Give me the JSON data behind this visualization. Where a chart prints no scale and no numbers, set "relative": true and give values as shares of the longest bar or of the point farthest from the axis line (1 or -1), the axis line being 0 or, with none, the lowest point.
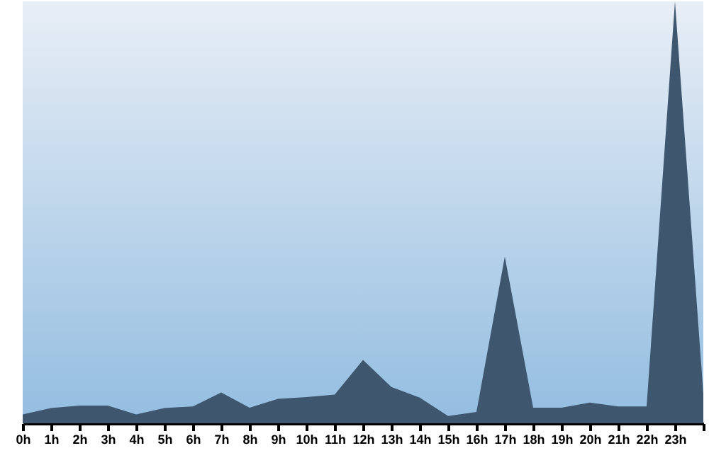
{
  "chart_data": {
    "type": "area",
    "relative": true,
    "categories": [
      "0h",
      "1h",
      "2h",
      "3h",
      "4h",
      "5h",
      "6h",
      "7h",
      "8h",
      "9h",
      "10h",
      "11h",
      "12h",
      "13h",
      "14h",
      "15h",
      "16h",
      "17h",
      "18h",
      "19h",
      "20h",
      "21h",
      "22h",
      "23h",
      null
    ],
    "series": [
      {
        "color": "#3f566f",
        "values": [
          0.021,
          0.036,
          0.042,
          0.042,
          0.021,
          0.036,
          0.04,
          0.073,
          0.037,
          0.058,
          0.062,
          0.068,
          0.15,
          0.086,
          0.061,
          0.017,
          0.027,
          0.395,
          0.037,
          0.037,
          0.049,
          0.04,
          0.04,
          1,
          0.07
        ]
      }
    ]
  }
}
